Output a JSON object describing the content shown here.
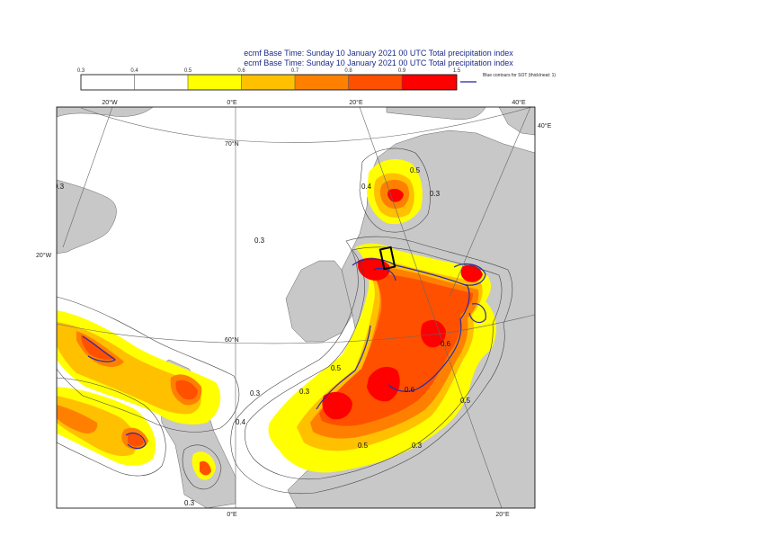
{
  "header": {
    "line1": "ecmf  Base Time: Sunday 10 January 2021 00 UTC Total precipitation index",
    "line2": "ecmf  Base Time: Sunday 10 January 2021 00 UTC Total precipitation index"
  },
  "legend": {
    "ticks": [
      "0.3",
      "0.4",
      "0.5",
      "0.6",
      "0.7",
      "0.8",
      "0.9",
      "1.5"
    ],
    "colors": [
      "#ffffff",
      "#ffffff",
      "#ffff00",
      "#ffc000",
      "#ff8000",
      "#ff5000",
      "#ff0000"
    ],
    "sot_note": "Blue contours for SOT (thick/neat: 1)",
    "sot_color": "#2020a0"
  },
  "map": {
    "colors": {
      "sea": "#ffffff",
      "land": "#c8c8c8",
      "c05": "#ffff00",
      "c06": "#ffc000",
      "c07": "#ff8000",
      "c08": "#ff5000",
      "c09": "#ff0000",
      "sot": "#2a2aa8"
    },
    "top_labels": [
      "20°W",
      "0°E",
      "20°E",
      "40°E"
    ],
    "bottom_labels": [
      "0°E",
      "20°E"
    ],
    "side_labels": [
      "20°W",
      "40°E"
    ],
    "lat_labels": [
      "70°N",
      "60°N"
    ],
    "contour_labels": [
      "0.5",
      "0.3",
      "0.3",
      "0.4",
      "0.3",
      "0.4",
      "0.5",
      "0.5",
      "0.3",
      "0.6",
      "0.6",
      "0.3",
      "0.3",
      "0.5",
      "0.3"
    ]
  }
}
